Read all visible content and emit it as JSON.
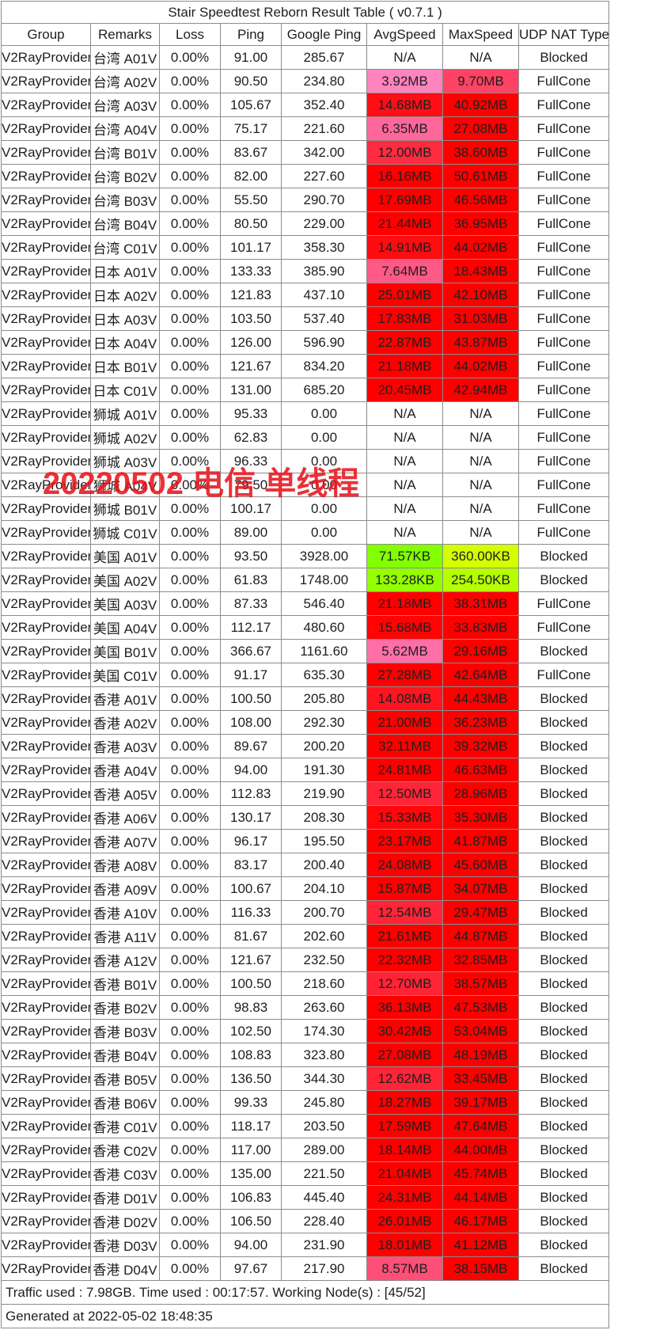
{
  "title": "Stair Speedtest Reborn Result Table ( v0.7.1 )",
  "watermark_text": "20220502 电信 单线程",
  "footer": {
    "summary": "Traffic used : 7.98GB. Time used : 00:17:57. Working Node(s) : [45/52]",
    "generated": "Generated at 2022-05-02 18:48:35"
  },
  "colors": {
    "border_gray": "#8c8c8c",
    "watermark_red": "#e8131b",
    "speed_red": "#FF0000",
    "na_white": "#FFFFFF"
  },
  "chart_data": {
    "type": "table",
    "title": "Stair Speedtest Reborn Result Table ( v0.7.1 )",
    "columns": [
      "Group",
      "Remarks",
      "Loss",
      "Ping",
      "Google Ping",
      "AvgSpeed",
      "MaxSpeed",
      "UDP NAT Type"
    ],
    "rows": [
      {
        "group": "V2RayProvider",
        "remarks": "台湾 A01V",
        "loss": "0.00%",
        "ping": "91.00",
        "google_ping": "285.67",
        "avg": "N/A",
        "avg_color": "#FFFFFF",
        "max": "N/A",
        "max_color": "#FFFFFF",
        "nat": "Blocked"
      },
      {
        "group": "V2RayProvider",
        "remarks": "台湾 A02V",
        "loss": "0.00%",
        "ping": "90.50",
        "google_ping": "234.80",
        "avg": "3.92MB",
        "avg_color": "#FF83BC",
        "max": "9.70MB",
        "max_color": "#FF4365",
        "nat": "FullCone"
      },
      {
        "group": "V2RayProvider",
        "remarks": "台湾 A03V",
        "loss": "0.00%",
        "ping": "105.67",
        "google_ping": "352.40",
        "avg": "14.68MB",
        "avg_color": "#FF0E15",
        "max": "40.92MB",
        "max_color": "#FF0000",
        "nat": "FullCone"
      },
      {
        "group": "V2RayProvider",
        "remarks": "台湾 A04V",
        "loss": "0.00%",
        "ping": "75.17",
        "google_ping": "221.60",
        "avg": "6.35MB",
        "avg_color": "#FF679A",
        "max": "27.08MB",
        "max_color": "#FF0000",
        "nat": "FullCone"
      },
      {
        "group": "V2RayProvider",
        "remarks": "台湾 B01V",
        "loss": "0.00%",
        "ping": "83.67",
        "google_ping": "342.00",
        "avg": "12.00MB",
        "avg_color": "#FF2B40",
        "max": "38.60MB",
        "max_color": "#FF0000",
        "nat": "FullCone"
      },
      {
        "group": "V2RayProvider",
        "remarks": "台湾 B02V",
        "loss": "0.00%",
        "ping": "82.00",
        "google_ping": "227.60",
        "avg": "16.16MB",
        "avg_color": "#FF0000",
        "max": "50.61MB",
        "max_color": "#FF0000",
        "nat": "FullCone"
      },
      {
        "group": "V2RayProvider",
        "remarks": "台湾 B03V",
        "loss": "0.00%",
        "ping": "55.50",
        "google_ping": "290.70",
        "avg": "17.69MB",
        "avg_color": "#FF0000",
        "max": "46.56MB",
        "max_color": "#FF0000",
        "nat": "FullCone"
      },
      {
        "group": "V2RayProvider",
        "remarks": "台湾 B04V",
        "loss": "0.00%",
        "ping": "80.50",
        "google_ping": "229.00",
        "avg": "21.44MB",
        "avg_color": "#FF0000",
        "max": "36.95MB",
        "max_color": "#FF0000",
        "nat": "FullCone"
      },
      {
        "group": "V2RayProvider",
        "remarks": "台湾 C01V",
        "loss": "0.00%",
        "ping": "101.17",
        "google_ping": "358.30",
        "avg": "14.91MB",
        "avg_color": "#FF0C11",
        "max": "44.02MB",
        "max_color": "#FF0000",
        "nat": "FullCone"
      },
      {
        "group": "V2RayProvider",
        "remarks": "日本 A01V",
        "loss": "0.00%",
        "ping": "133.33",
        "google_ping": "385.90",
        "avg": "7.64MB",
        "avg_color": "#FF5986",
        "max": "18.43MB",
        "max_color": "#FF0000",
        "nat": "FullCone"
      },
      {
        "group": "V2RayProvider",
        "remarks": "日本 A02V",
        "loss": "0.00%",
        "ping": "121.83",
        "google_ping": "437.10",
        "avg": "25.01MB",
        "avg_color": "#FF0000",
        "max": "42.10MB",
        "max_color": "#FF0000",
        "nat": "FullCone"
      },
      {
        "group": "V2RayProvider",
        "remarks": "日本 A03V",
        "loss": "0.00%",
        "ping": "103.50",
        "google_ping": "537.40",
        "avg": "17.83MB",
        "avg_color": "#FF0000",
        "max": "31.03MB",
        "max_color": "#FF0000",
        "nat": "FullCone"
      },
      {
        "group": "V2RayProvider",
        "remarks": "日本 A04V",
        "loss": "0.00%",
        "ping": "126.00",
        "google_ping": "596.90",
        "avg": "22.87MB",
        "avg_color": "#FF0000",
        "max": "43.87MB",
        "max_color": "#FF0000",
        "nat": "FullCone"
      },
      {
        "group": "V2RayProvider",
        "remarks": "日本 B01V",
        "loss": "0.00%",
        "ping": "121.67",
        "google_ping": "834.20",
        "avg": "21.18MB",
        "avg_color": "#FF0000",
        "max": "44.02MB",
        "max_color": "#FF0000",
        "nat": "FullCone"
      },
      {
        "group": "V2RayProvider",
        "remarks": "日本 C01V",
        "loss": "0.00%",
        "ping": "131.00",
        "google_ping": "685.20",
        "avg": "20.45MB",
        "avg_color": "#FF0000",
        "max": "42.94MB",
        "max_color": "#FF0000",
        "nat": "FullCone"
      },
      {
        "group": "V2RayProvider",
        "remarks": "狮城 A01V",
        "loss": "0.00%",
        "ping": "95.33",
        "google_ping": "0.00",
        "avg": "N/A",
        "avg_color": "#FFFFFF",
        "max": "N/A",
        "max_color": "#FFFFFF",
        "nat": "FullCone"
      },
      {
        "group": "V2RayProvider",
        "remarks": "狮城 A02V",
        "loss": "0.00%",
        "ping": "62.83",
        "google_ping": "0.00",
        "avg": "N/A",
        "avg_color": "#FFFFFF",
        "max": "N/A",
        "max_color": "#FFFFFF",
        "nat": "FullCone"
      },
      {
        "group": "V2RayProvider",
        "remarks": "狮城 A03V",
        "loss": "0.00%",
        "ping": "96.33",
        "google_ping": "0.00",
        "avg": "N/A",
        "avg_color": "#FFFFFF",
        "max": "N/A",
        "max_color": "#FFFFFF",
        "nat": "FullCone"
      },
      {
        "group": "V2RayProvider",
        "remarks": "狮城 A04V",
        "loss": "0.00%",
        "ping": "79.50",
        "google_ping": "0.00",
        "avg": "N/A",
        "avg_color": "#FFFFFF",
        "max": "N/A",
        "max_color": "#FFFFFF",
        "nat": "FullCone"
      },
      {
        "group": "V2RayProvider",
        "remarks": "狮城 B01V",
        "loss": "0.00%",
        "ping": "100.17",
        "google_ping": "0.00",
        "avg": "N/A",
        "avg_color": "#FFFFFF",
        "max": "N/A",
        "max_color": "#FFFFFF",
        "nat": "FullCone"
      },
      {
        "group": "V2RayProvider",
        "remarks": "狮城 C01V",
        "loss": "0.00%",
        "ping": "89.00",
        "google_ping": "0.00",
        "avg": "N/A",
        "avg_color": "#FFFFFF",
        "max": "N/A",
        "max_color": "#FFFFFF",
        "nat": "FullCone"
      },
      {
        "group": "V2RayProvider",
        "remarks": "美国 A01V",
        "loss": "0.00%",
        "ping": "93.50",
        "google_ping": "3928.00",
        "avg": "71.57KB",
        "avg_color": "#82FF00",
        "max": "360.00KB",
        "max_color": "#D4FF00",
        "nat": "Blocked"
      },
      {
        "group": "V2RayProvider",
        "remarks": "美国 A02V",
        "loss": "0.00%",
        "ping": "61.83",
        "google_ping": "1748.00",
        "avg": "133.28KB",
        "avg_color": "#94FF00",
        "max": "254.50KB",
        "max_color": "#B6FF00",
        "nat": "Blocked"
      },
      {
        "group": "V2RayProvider",
        "remarks": "美国 A03V",
        "loss": "0.00%",
        "ping": "87.33",
        "google_ping": "546.40",
        "avg": "21.18MB",
        "avg_color": "#FF0000",
        "max": "38.31MB",
        "max_color": "#FF0000",
        "nat": "FullCone"
      },
      {
        "group": "V2RayProvider",
        "remarks": "美国 A04V",
        "loss": "0.00%",
        "ping": "112.17",
        "google_ping": "480.60",
        "avg": "15.68MB",
        "avg_color": "#FF0305",
        "max": "33.83MB",
        "max_color": "#FF0000",
        "nat": "FullCone"
      },
      {
        "group": "V2RayProvider",
        "remarks": "美国 B01V",
        "loss": "0.00%",
        "ping": "366.67",
        "google_ping": "1161.60",
        "avg": "5.62MB",
        "avg_color": "#FF6FA6",
        "max": "29.16MB",
        "max_color": "#FF0000",
        "nat": "Blocked"
      },
      {
        "group": "V2RayProvider",
        "remarks": "美国 C01V",
        "loss": "0.00%",
        "ping": "91.17",
        "google_ping": "635.30",
        "avg": "27.28MB",
        "avg_color": "#FF0000",
        "max": "42.64MB",
        "max_color": "#FF0000",
        "nat": "FullCone"
      },
      {
        "group": "V2RayProvider",
        "remarks": "香港 A01V",
        "loss": "0.00%",
        "ping": "100.50",
        "google_ping": "205.80",
        "avg": "14.08MB",
        "avg_color": "#FF141F",
        "max": "44.43MB",
        "max_color": "#FF0000",
        "nat": "Blocked"
      },
      {
        "group": "V2RayProvider",
        "remarks": "香港 A02V",
        "loss": "0.00%",
        "ping": "108.00",
        "google_ping": "292.30",
        "avg": "21.00MB",
        "avg_color": "#FF0000",
        "max": "36.23MB",
        "max_color": "#FF0000",
        "nat": "Blocked"
      },
      {
        "group": "V2RayProvider",
        "remarks": "香港 A03V",
        "loss": "0.00%",
        "ping": "89.67",
        "google_ping": "200.20",
        "avg": "32.11MB",
        "avg_color": "#FF0000",
        "max": "39.32MB",
        "max_color": "#FF0000",
        "nat": "Blocked"
      },
      {
        "group": "V2RayProvider",
        "remarks": "香港 A04V",
        "loss": "0.00%",
        "ping": "94.00",
        "google_ping": "191.30",
        "avg": "24.81MB",
        "avg_color": "#FF0000",
        "max": "46.63MB",
        "max_color": "#FF0000",
        "nat": "Blocked"
      },
      {
        "group": "V2RayProvider",
        "remarks": "香港 A05V",
        "loss": "0.00%",
        "ping": "112.83",
        "google_ping": "219.90",
        "avg": "12.50MB",
        "avg_color": "#FF2538",
        "max": "28.96MB",
        "max_color": "#FF0000",
        "nat": "Blocked"
      },
      {
        "group": "V2RayProvider",
        "remarks": "香港 A06V",
        "loss": "0.00%",
        "ping": "130.17",
        "google_ping": "208.30",
        "avg": "15.33MB",
        "avg_color": "#FF070B",
        "max": "35.30MB",
        "max_color": "#FF0000",
        "nat": "Blocked"
      },
      {
        "group": "V2RayProvider",
        "remarks": "香港 A07V",
        "loss": "0.00%",
        "ping": "96.17",
        "google_ping": "195.50",
        "avg": "23.17MB",
        "avg_color": "#FF0000",
        "max": "41.87MB",
        "max_color": "#FF0000",
        "nat": "Blocked"
      },
      {
        "group": "V2RayProvider",
        "remarks": "香港 A08V",
        "loss": "0.00%",
        "ping": "83.17",
        "google_ping": "200.40",
        "avg": "24.08MB",
        "avg_color": "#FF0000",
        "max": "45.60MB",
        "max_color": "#FF0000",
        "nat": "Blocked"
      },
      {
        "group": "V2RayProvider",
        "remarks": "香港 A09V",
        "loss": "0.00%",
        "ping": "100.67",
        "google_ping": "204.10",
        "avg": "15.87MB",
        "avg_color": "#FF0102",
        "max": "34.07MB",
        "max_color": "#FF0000",
        "nat": "Blocked"
      },
      {
        "group": "V2RayProvider",
        "remarks": "香港 A10V",
        "loss": "0.00%",
        "ping": "116.33",
        "google_ping": "200.70",
        "avg": "12.54MB",
        "avg_color": "#FF2537",
        "max": "29.47MB",
        "max_color": "#FF0000",
        "nat": "Blocked"
      },
      {
        "group": "V2RayProvider",
        "remarks": "香港 A11V",
        "loss": "0.00%",
        "ping": "81.67",
        "google_ping": "202.60",
        "avg": "21.61MB",
        "avg_color": "#FF0000",
        "max": "44.87MB",
        "max_color": "#FF0000",
        "nat": "Blocked"
      },
      {
        "group": "V2RayProvider",
        "remarks": "香港 A12V",
        "loss": "0.00%",
        "ping": "121.67",
        "google_ping": "232.50",
        "avg": "22.32MB",
        "avg_color": "#FF0000",
        "max": "32.85MB",
        "max_color": "#FF0000",
        "nat": "Blocked"
      },
      {
        "group": "V2RayProvider",
        "remarks": "香港 B01V",
        "loss": "0.00%",
        "ping": "100.50",
        "google_ping": "218.60",
        "avg": "12.70MB",
        "avg_color": "#FF2335",
        "max": "38.57MB",
        "max_color": "#FF0000",
        "nat": "Blocked"
      },
      {
        "group": "V2RayProvider",
        "remarks": "香港 B02V",
        "loss": "0.00%",
        "ping": "98.83",
        "google_ping": "263.60",
        "avg": "36.13MB",
        "avg_color": "#FF0000",
        "max": "47.53MB",
        "max_color": "#FF0000",
        "nat": "Blocked"
      },
      {
        "group": "V2RayProvider",
        "remarks": "香港 B03V",
        "loss": "0.00%",
        "ping": "102.50",
        "google_ping": "174.30",
        "avg": "30.42MB",
        "avg_color": "#FF0000",
        "max": "53.04MB",
        "max_color": "#FF0000",
        "nat": "Blocked"
      },
      {
        "group": "V2RayProvider",
        "remarks": "香港 B04V",
        "loss": "0.00%",
        "ping": "108.83",
        "google_ping": "323.80",
        "avg": "27.08MB",
        "avg_color": "#FF0000",
        "max": "48.19MB",
        "max_color": "#FF0000",
        "nat": "Blocked"
      },
      {
        "group": "V2RayProvider",
        "remarks": "香港 B05V",
        "loss": "0.00%",
        "ping": "136.50",
        "google_ping": "344.30",
        "avg": "12.62MB",
        "avg_color": "#FF2436",
        "max": "33.45MB",
        "max_color": "#FF0000",
        "nat": "Blocked"
      },
      {
        "group": "V2RayProvider",
        "remarks": "香港 B06V",
        "loss": "0.00%",
        "ping": "99.33",
        "google_ping": "245.80",
        "avg": "18.27MB",
        "avg_color": "#FF0000",
        "max": "39.17MB",
        "max_color": "#FF0000",
        "nat": "Blocked"
      },
      {
        "group": "V2RayProvider",
        "remarks": "香港 C01V",
        "loss": "0.00%",
        "ping": "118.17",
        "google_ping": "203.50",
        "avg": "17.59MB",
        "avg_color": "#FF0000",
        "max": "47.64MB",
        "max_color": "#FF0000",
        "nat": "Blocked"
      },
      {
        "group": "V2RayProvider",
        "remarks": "香港 C02V",
        "loss": "0.00%",
        "ping": "117.00",
        "google_ping": "289.00",
        "avg": "18.14MB",
        "avg_color": "#FF0000",
        "max": "44.00MB",
        "max_color": "#FF0000",
        "nat": "Blocked"
      },
      {
        "group": "V2RayProvider",
        "remarks": "香港 C03V",
        "loss": "0.00%",
        "ping": "135.00",
        "google_ping": "221.50",
        "avg": "21.04MB",
        "avg_color": "#FF0000",
        "max": "45.74MB",
        "max_color": "#FF0000",
        "nat": "Blocked"
      },
      {
        "group": "V2RayProvider",
        "remarks": "香港 D01V",
        "loss": "0.00%",
        "ping": "106.83",
        "google_ping": "445.40",
        "avg": "24.31MB",
        "avg_color": "#FF0000",
        "max": "44.14MB",
        "max_color": "#FF0000",
        "nat": "Blocked"
      },
      {
        "group": "V2RayProvider",
        "remarks": "香港 D02V",
        "loss": "0.00%",
        "ping": "106.50",
        "google_ping": "228.40",
        "avg": "26.01MB",
        "avg_color": "#FF0000",
        "max": "46.17MB",
        "max_color": "#FF0000",
        "nat": "Blocked"
      },
      {
        "group": "V2RayProvider",
        "remarks": "香港 D03V",
        "loss": "0.00%",
        "ping": "94.00",
        "google_ping": "231.90",
        "avg": "18.01MB",
        "avg_color": "#FF0000",
        "max": "41.12MB",
        "max_color": "#FF0000",
        "nat": "Blocked"
      },
      {
        "group": "V2RayProvider",
        "remarks": "香港 D04V",
        "loss": "0.00%",
        "ping": "97.67",
        "google_ping": "217.90",
        "avg": "8.57MB",
        "avg_color": "#FF4F77",
        "max": "38.15MB",
        "max_color": "#FF0000",
        "nat": "Blocked"
      }
    ]
  }
}
